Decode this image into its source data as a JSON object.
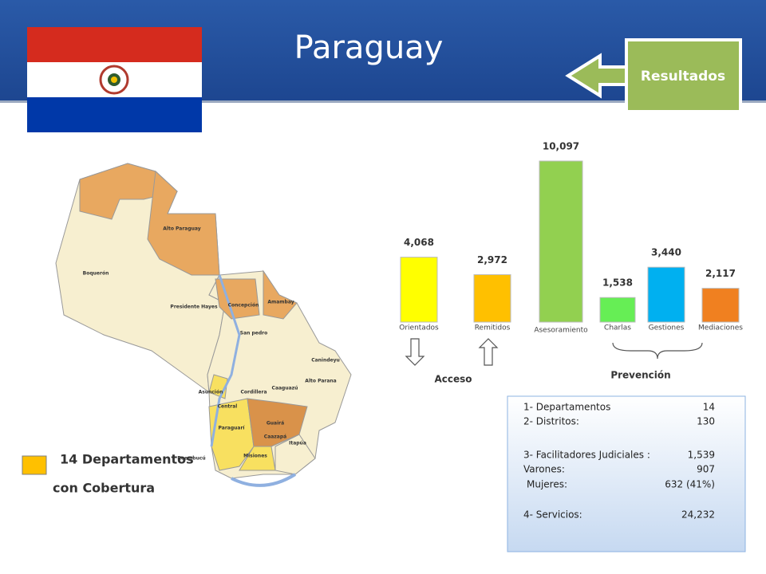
{
  "header": {
    "title": "Paraguay",
    "button": "Resultados"
  },
  "map": {
    "labels": [
      "Alto Paraguay",
      "Boquerón",
      "Presidente Hayes",
      "Concepción",
      "San pedro",
      "Amambay",
      "Canindeyu",
      "Alto Parana",
      "Caaguazú",
      "Cordillera",
      "Guairá",
      "Caazapá",
      "Itapúa",
      "Misiones",
      "Paraguarí",
      "Reembucú",
      "Central",
      "Asunción"
    ]
  },
  "legend": {
    "line1": "14 Departamentos",
    "line2": "con Cobertura"
  },
  "chart_data": {
    "type": "bar",
    "categories": [
      "Orientados",
      "Remitidos",
      "Asesoramiento",
      "Charlas",
      "Gestiones",
      "Mediaciones"
    ],
    "values": [
      4068,
      2972,
      10097,
      1538,
      3440,
      2117
    ],
    "value_labels": [
      "4,068",
      "2,972",
      "10,097",
      "1,538",
      "3,440",
      "2,117"
    ],
    "colors": [
      "#ffff00",
      "#ffc000",
      "#92d050",
      "#66ee55",
      "#00b0f0",
      "#f08020"
    ],
    "groups": [
      "Acceso",
      "Prevención"
    ]
  },
  "stats": {
    "lines": [
      {
        "label": "1- Departamentos",
        "value": "14"
      },
      {
        "label": "2- Distritos:",
        "value": "130"
      },
      {
        "label": "3- Facilitadores Judiciales :",
        "value": "1,539"
      },
      {
        "label": "Varones:",
        "value": "907"
      },
      {
        "label": "Mujeres:",
        "value": "632 (41%)"
      },
      {
        "label": "4- Servicios:",
        "value": "24,232"
      }
    ]
  }
}
